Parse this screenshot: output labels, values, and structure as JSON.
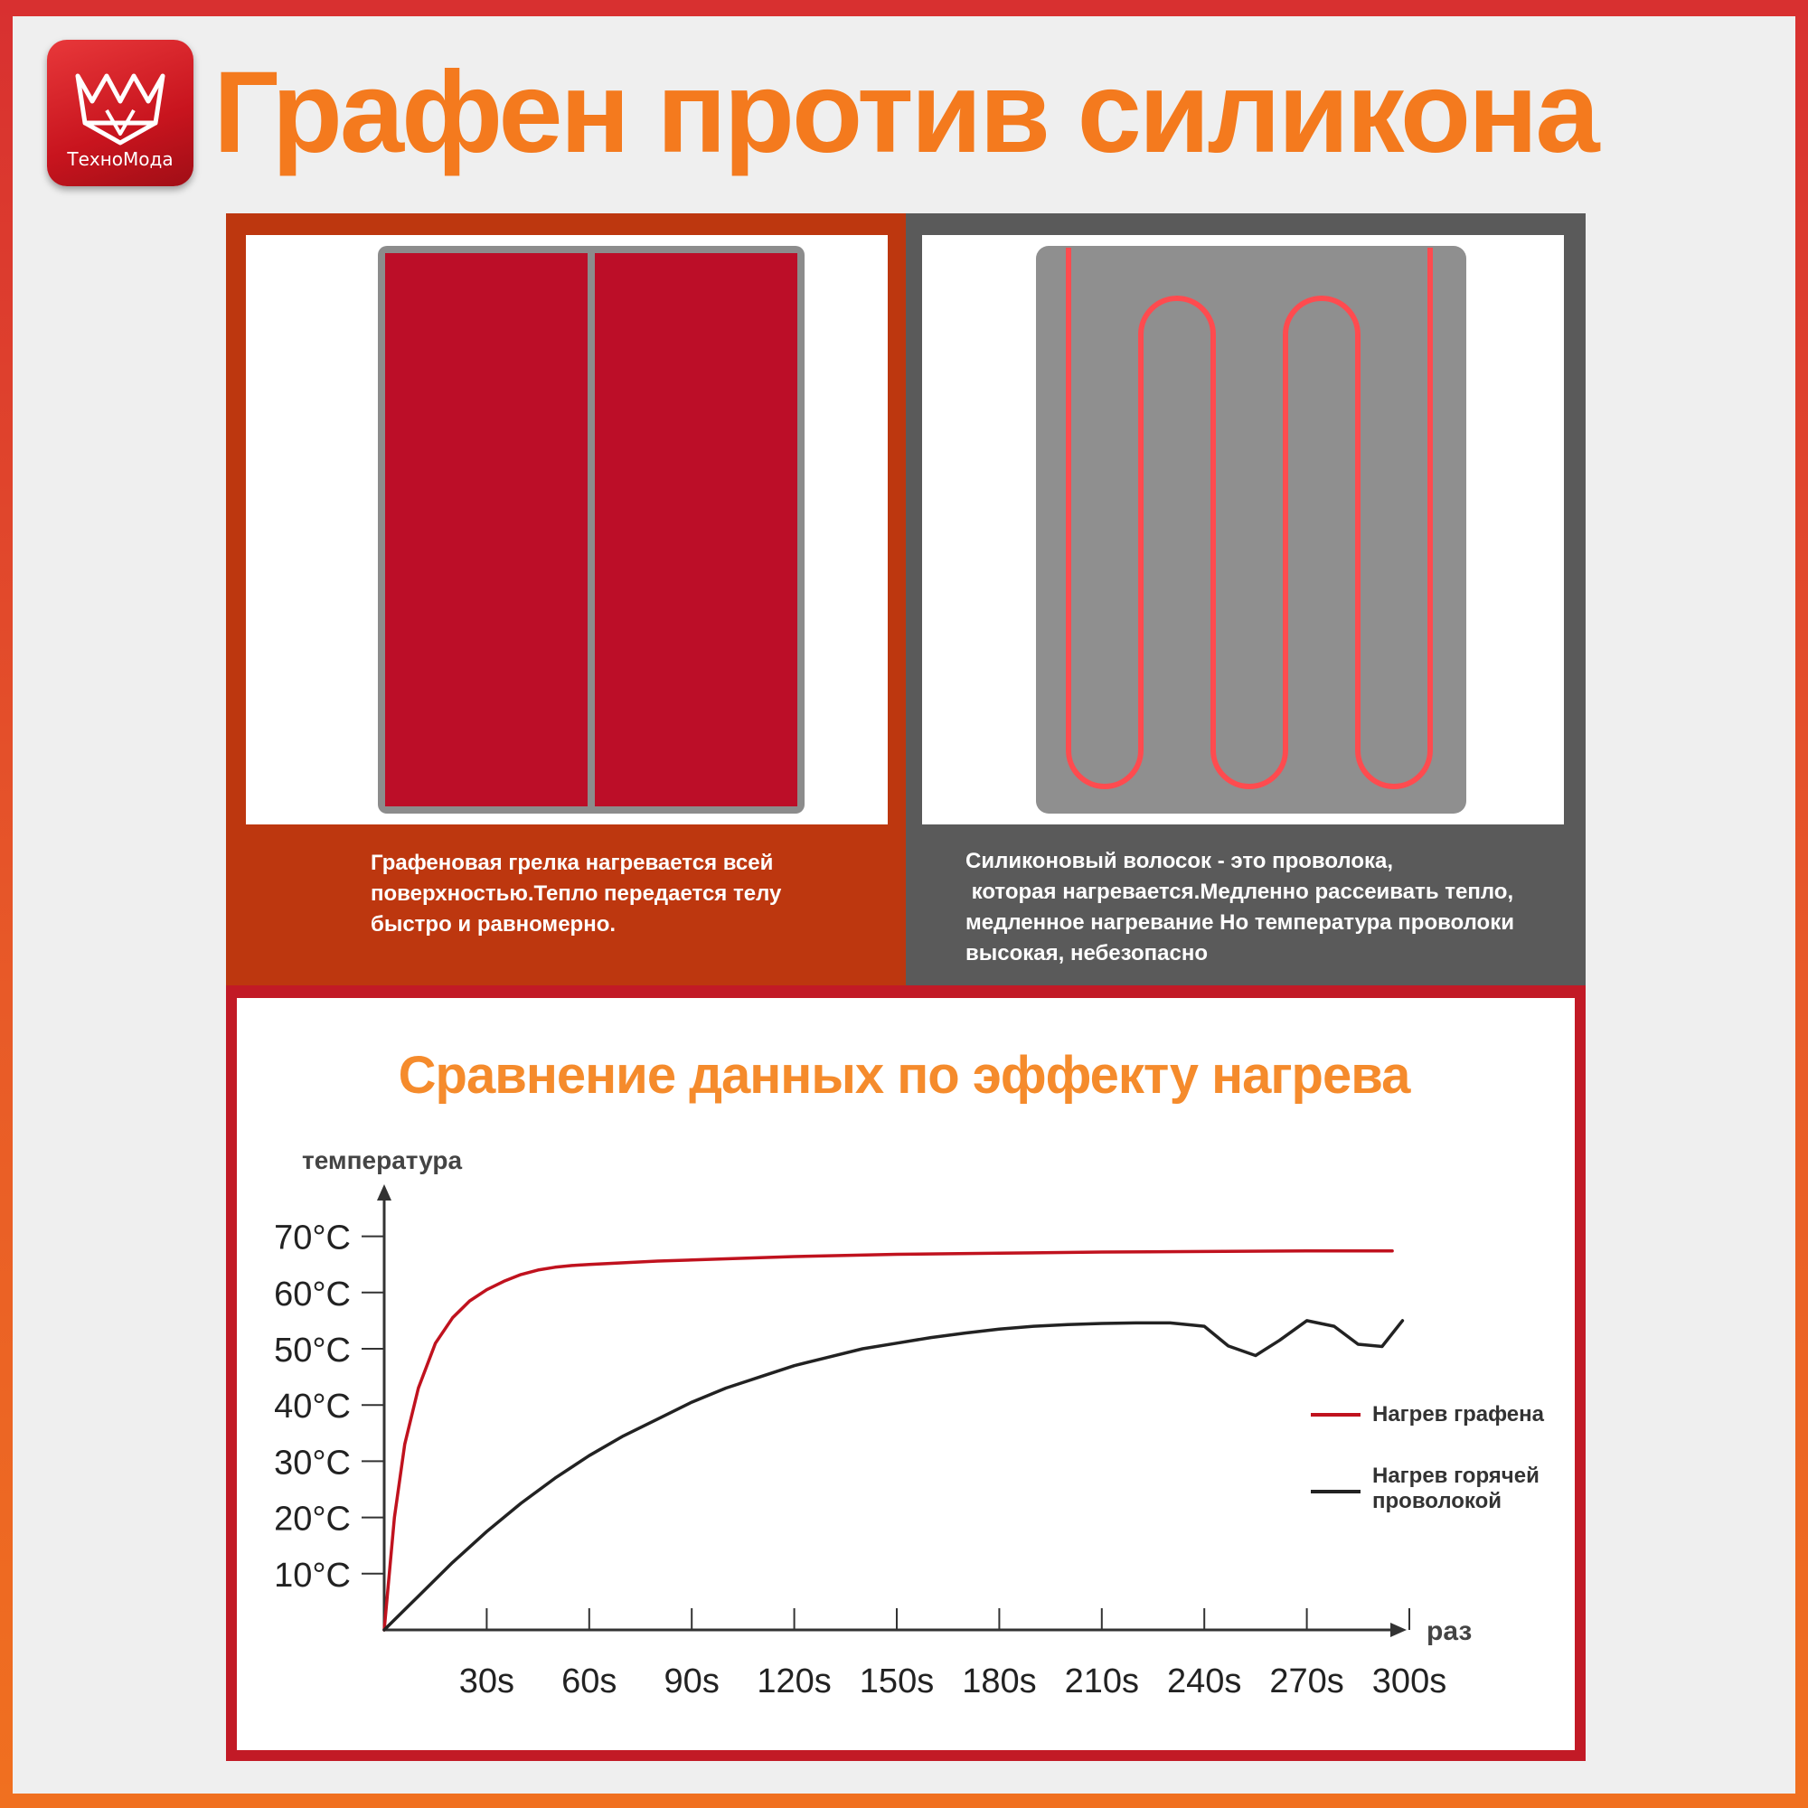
{
  "brand": {
    "name": "ТехноМода",
    "logo_icon": "crown-icon"
  },
  "title": "Графен против силикона",
  "panels": {
    "graphene": {
      "caption_lines": [
        "Графеновая грелка нагревается всей",
        "поверхностью.Тепло передается телу",
        "быстро и равномерно."
      ],
      "colors": {
        "background": "#bd370f",
        "heater": "#bc0e28",
        "frame": "#8c8c8c"
      }
    },
    "silicone": {
      "caption_lines": [
        "Силиконовый волосок - это проволока,",
        " которая нагревается.Медленно рассеивать тепло,",
        "медленное нагревание Но температура проволоки",
        "высокая, небезопасно"
      ],
      "colors": {
        "background": "#5a5a5a",
        "pad": "#8f8f8f",
        "wire": "#ff4b4f"
      }
    }
  },
  "chart_title": "Сравнение данных по эффекту нагрева",
  "chart_data": {
    "type": "line",
    "title": "Сравнение данных по эффекту нагрева",
    "ylabel": "температура",
    "xlabel": "раз",
    "xlim": [
      0,
      315
    ],
    "ylim": [
      0,
      75
    ],
    "x_ticks": [
      30,
      60,
      90,
      120,
      150,
      180,
      210,
      240,
      270,
      300
    ],
    "x_tick_labels": [
      "30s",
      "60s",
      "90s",
      "120s",
      "150s",
      "180s",
      "210s",
      "240s",
      "270s",
      "300s"
    ],
    "y_ticks": [
      10,
      20,
      30,
      40,
      50,
      60,
      70
    ],
    "y_tick_labels": [
      "10°C",
      "20°C",
      "30°C",
      "40°C",
      "50°C",
      "60°C",
      "70°C"
    ],
    "legend_position": "right",
    "grid": false,
    "series": [
      {
        "name": "Нагрев графена",
        "color": "#c0121e",
        "x": [
          0,
          3,
          6,
          10,
          15,
          20,
          25,
          30,
          35,
          40,
          45,
          50,
          55,
          60,
          80,
          100,
          120,
          150,
          180,
          210,
          240,
          270,
          295
        ],
        "y": [
          0,
          20,
          33,
          43,
          51,
          55.5,
          58.5,
          60.5,
          62,
          63.2,
          64,
          64.5,
          64.8,
          65,
          65.6,
          66,
          66.4,
          66.8,
          67,
          67.2,
          67.3,
          67.4,
          67.4
        ]
      },
      {
        "name": "Нагрев горячей проволокой",
        "color": "#222222",
        "x": [
          0,
          10,
          20,
          30,
          40,
          50,
          60,
          70,
          80,
          90,
          100,
          110,
          120,
          130,
          140,
          150,
          160,
          170,
          180,
          190,
          200,
          210,
          220,
          230,
          240,
          247,
          255,
          262,
          270,
          278,
          285,
          292,
          298
        ],
        "y": [
          0,
          6,
          12,
          17.5,
          22.5,
          27,
          31,
          34.5,
          37.5,
          40.5,
          43,
          45,
          47,
          48.5,
          50,
          51,
          52,
          52.8,
          53.5,
          54,
          54.3,
          54.5,
          54.6,
          54.6,
          54,
          50.5,
          48.8,
          51.5,
          55,
          54,
          50.8,
          50.4,
          55
        ]
      }
    ]
  }
}
